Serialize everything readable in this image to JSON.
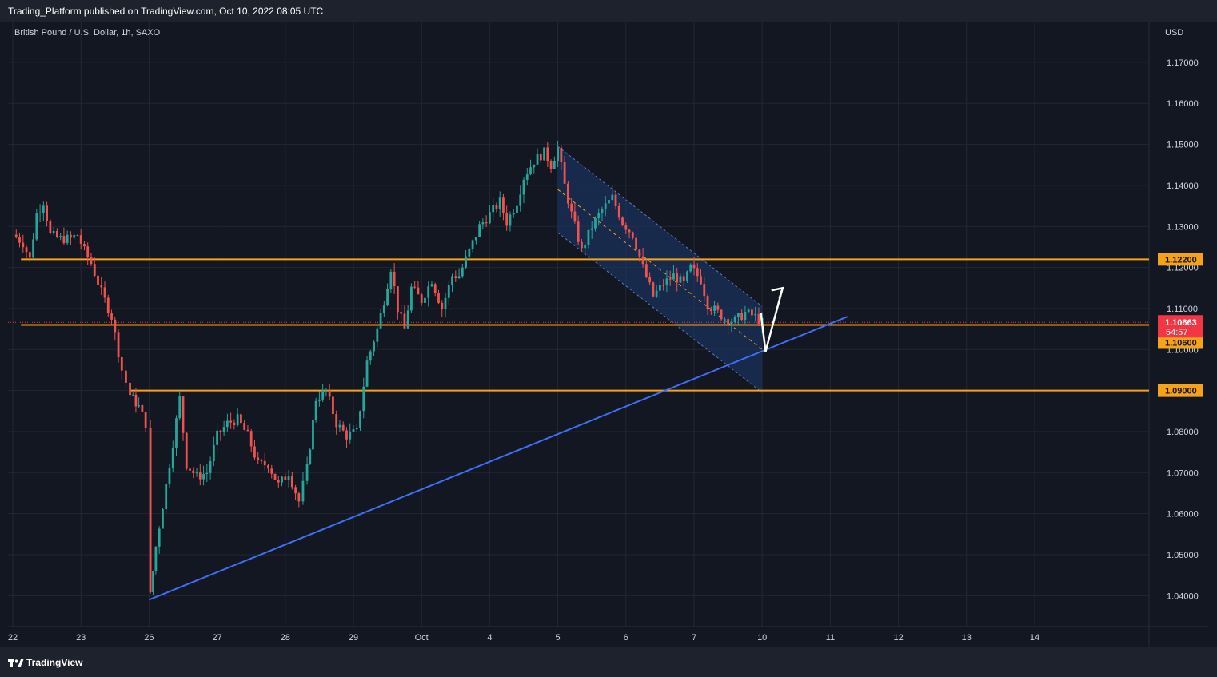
{
  "header": {
    "published_text": "Trading_Platform published on TradingView.com, Oct 10, 2022 08:05 UTC"
  },
  "symbol": {
    "title": "British Pound / U.S. Dollar, 1h, SAXO",
    "currency": "USD"
  },
  "footer": {
    "brand": "TradingView"
  },
  "colors": {
    "background": "#131722",
    "grid": "#232734",
    "up_candle": "#26a69a",
    "down_candle": "#ef5350",
    "level_line": "#f7a21b",
    "trendline": "#3d6ef5",
    "channel_fill": "#1e3a6e",
    "price_tag": "#f23645"
  },
  "chart_data": {
    "type": "candlestick",
    "timeframe": "1h",
    "ylim": [
      1.035,
      1.178
    ],
    "y_ticks": [
      "1.17000",
      "1.16000",
      "1.15000",
      "1.14000",
      "1.13000",
      "1.12000",
      "1.11000",
      "1.10000",
      "1.09000",
      "1.08000",
      "1.07000",
      "1.06000",
      "1.05000",
      "1.04000"
    ],
    "y_tick_values": [
      1.17,
      1.16,
      1.15,
      1.14,
      1.13,
      1.12,
      1.11,
      1.1,
      1.09,
      1.08,
      1.07,
      1.06,
      1.05,
      1.04
    ],
    "x_ticks": [
      "22",
      "23",
      "26",
      "27",
      "28",
      "29",
      "Oct",
      "4",
      "5",
      "6",
      "7",
      "10",
      "11",
      "12",
      "13",
      "14"
    ],
    "x_tick_index": [
      0,
      1,
      2,
      3,
      4,
      5,
      6,
      7,
      8,
      9,
      10,
      11,
      12,
      13,
      14,
      15
    ],
    "price_path": [
      [
        0.0,
        1.128
      ],
      [
        0.15,
        1.126
      ],
      [
        0.25,
        1.122
      ],
      [
        0.35,
        1.133
      ],
      [
        0.45,
        1.136
      ],
      [
        0.55,
        1.128
      ],
      [
        0.7,
        1.127
      ],
      [
        0.85,
        1.127
      ],
      [
        0.95,
        1.128
      ],
      [
        1.05,
        1.124
      ],
      [
        1.15,
        1.121
      ],
      [
        1.3,
        1.114
      ],
      [
        1.45,
        1.108
      ],
      [
        1.6,
        1.095
      ],
      [
        1.72,
        1.089
      ],
      [
        1.85,
        1.086
      ],
      [
        1.95,
        1.082
      ],
      [
        2.02,
        1.04
      ],
      [
        2.1,
        1.052
      ],
      [
        2.2,
        1.062
      ],
      [
        2.3,
        1.072
      ],
      [
        2.45,
        1.088
      ],
      [
        2.55,
        1.072
      ],
      [
        2.7,
        1.069
      ],
      [
        2.85,
        1.07
      ],
      [
        3.0,
        1.079
      ],
      [
        3.15,
        1.082
      ],
      [
        3.3,
        1.083
      ],
      [
        3.45,
        1.079
      ],
      [
        3.6,
        1.072
      ],
      [
        3.75,
        1.072
      ],
      [
        3.9,
        1.067
      ],
      [
        4.05,
        1.07
      ],
      [
        4.2,
        1.063
      ],
      [
        4.32,
        1.071
      ],
      [
        4.45,
        1.088
      ],
      [
        4.6,
        1.09
      ],
      [
        4.75,
        1.082
      ],
      [
        4.9,
        1.079
      ],
      [
        5.05,
        1.08
      ],
      [
        5.2,
        1.097
      ],
      [
        5.35,
        1.105
      ],
      [
        5.45,
        1.112
      ],
      [
        5.55,
        1.12
      ],
      [
        5.65,
        1.11
      ],
      [
        5.75,
        1.105
      ],
      [
        5.85,
        1.115
      ],
      [
        6.0,
        1.112
      ],
      [
        6.15,
        1.117
      ],
      [
        6.3,
        1.11
      ],
      [
        6.45,
        1.118
      ],
      [
        6.55,
        1.118
      ],
      [
        6.7,
        1.124
      ],
      [
        6.85,
        1.13
      ],
      [
        7.0,
        1.133
      ],
      [
        7.15,
        1.136
      ],
      [
        7.25,
        1.131
      ],
      [
        7.4,
        1.136
      ],
      [
        7.5,
        1.142
      ],
      [
        7.65,
        1.146
      ],
      [
        7.8,
        1.148
      ],
      [
        7.9,
        1.145
      ],
      [
        8.0,
        1.149
      ],
      [
        8.1,
        1.14
      ],
      [
        8.2,
        1.133
      ],
      [
        8.35,
        1.124
      ],
      [
        8.5,
        1.13
      ],
      [
        8.65,
        1.134
      ],
      [
        8.8,
        1.137
      ],
      [
        8.95,
        1.131
      ],
      [
        9.1,
        1.128
      ],
      [
        9.25,
        1.12
      ],
      [
        9.4,
        1.113
      ],
      [
        9.55,
        1.116
      ],
      [
        9.7,
        1.118
      ],
      [
        9.85,
        1.116
      ],
      [
        9.95,
        1.12
      ],
      [
        10.1,
        1.117
      ],
      [
        10.2,
        1.111
      ],
      [
        10.35,
        1.109
      ],
      [
        10.5,
        1.107
      ],
      [
        10.6,
        1.107
      ],
      [
        10.75,
        1.109
      ],
      [
        10.9,
        1.108
      ],
      [
        11.0,
        1.1066
      ]
    ],
    "levels": [
      {
        "label": "1.12200",
        "value": 1.122
      },
      {
        "label": "1.10600",
        "value": 1.106
      },
      {
        "label": "1.09000",
        "value": 1.09
      }
    ],
    "current_price": {
      "label": "1.10663",
      "value": 1.10663,
      "countdown": "54:57"
    },
    "trendline": {
      "x1": 2.0,
      "y1": 1.039,
      "x2": 12.25,
      "y2": 1.108
    },
    "channel": {
      "x1": 8.0,
      "x2": 11.0,
      "upper_start": 1.1495,
      "upper_end": 1.1105,
      "lower_start": 1.1285,
      "lower_end": 1.0895,
      "mid_start": 1.139,
      "mid_end": 1.1
    },
    "projection_arrow": [
      [
        10.98,
        1.109
      ],
      [
        11.05,
        1.0995
      ],
      [
        11.3,
        1.115
      ]
    ]
  }
}
